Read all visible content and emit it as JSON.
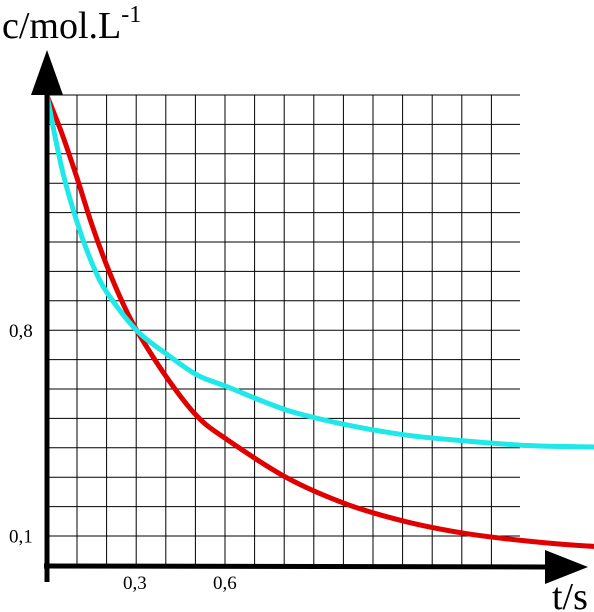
{
  "chart_data": {
    "type": "line",
    "xlabel": "t/s",
    "ylabel_main": "c/mol.L",
    "ylabel_sup": "-1",
    "x_ticks": [
      {
        "value": 0.3,
        "label": "0,3"
      },
      {
        "value": 0.6,
        "label": "0,6"
      }
    ],
    "y_ticks": [
      {
        "value": 0.8,
        "label": "0,8"
      },
      {
        "value": 0.1,
        "label": "0,1"
      }
    ],
    "grid": true,
    "series": [
      {
        "color": "#e00000",
        "x": [
          0.0,
          0.05,
          0.1,
          0.15,
          0.2,
          0.25,
          0.3,
          0.4,
          0.5,
          0.6,
          0.8,
          1.0,
          1.2,
          1.4,
          1.6,
          1.8,
          2.05
        ],
        "y": [
          1.6,
          1.47,
          1.32,
          1.16,
          1.02,
          0.9,
          0.8,
          0.64,
          0.51,
          0.43,
          0.3,
          0.21,
          0.15,
          0.11,
          0.085,
          0.068,
          0.058
        ]
      },
      {
        "color": "#1ee8e8",
        "x": [
          0.0,
          0.05,
          0.1,
          0.15,
          0.2,
          0.3,
          0.4,
          0.5,
          0.6,
          0.8,
          1.0,
          1.2,
          1.4,
          1.6,
          1.8,
          2.1
        ],
        "y": [
          1.6,
          1.35,
          1.17,
          1.03,
          0.93,
          0.8,
          0.72,
          0.65,
          0.61,
          0.53,
          0.48,
          0.445,
          0.425,
          0.41,
          0.405,
          0.4
        ]
      }
    ]
  },
  "colors": {
    "axis": "#000000",
    "grid": "#000000",
    "background": "#ffffff"
  }
}
